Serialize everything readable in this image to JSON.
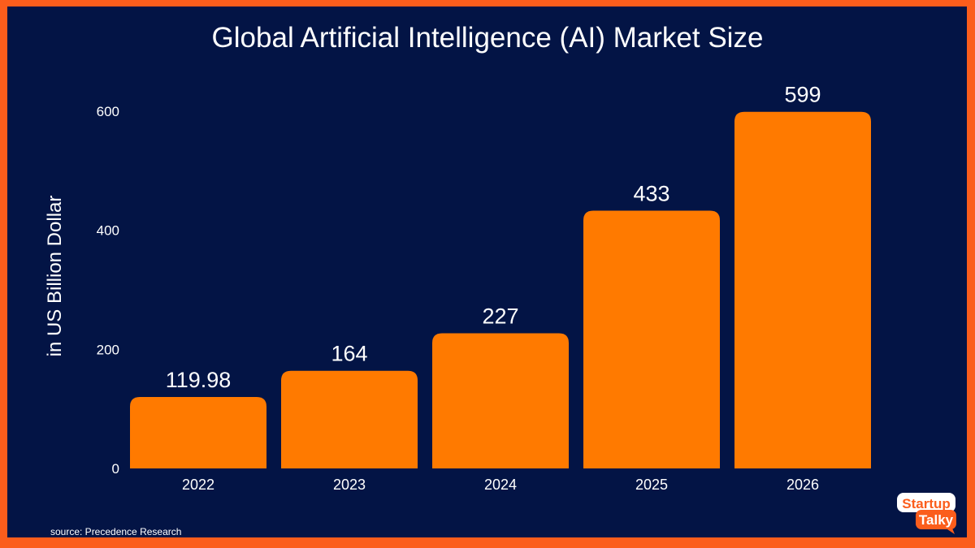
{
  "chart_data": {
    "type": "bar",
    "title": "Global Artificial Intelligence (AI) Market Size",
    "ylabel": "in US Billion Dollar",
    "xlabel": "",
    "categories": [
      "2022",
      "2023",
      "2024",
      "2025",
      "2026"
    ],
    "values": [
      119.98,
      164,
      227,
      433,
      599
    ],
    "data_labels": [
      "119.98",
      "164",
      "227",
      "433",
      "599"
    ],
    "yticks": [
      0,
      200,
      400,
      600
    ],
    "ylim": [
      0,
      600
    ],
    "grid": false,
    "bar_color": "#ff7a00",
    "background_color": "#031445",
    "border_color": "#fb5d1c"
  },
  "source": "source:  Precedence Research",
  "logo": {
    "line1": "Startup",
    "line2": "Talky"
  }
}
